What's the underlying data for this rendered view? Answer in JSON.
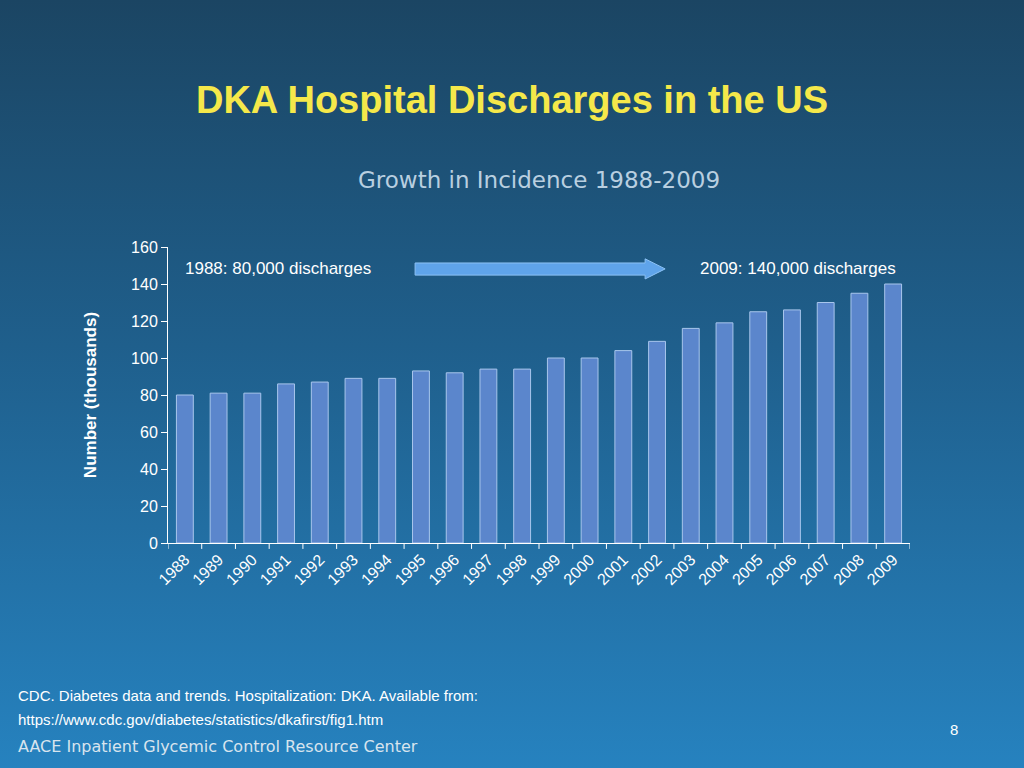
{
  "chart_data": {
    "type": "bar",
    "title": "DKA Hospital Discharges in the US",
    "subtitle": "Growth in Incidence 1988-2009",
    "y_label": "Number (thousands)",
    "categories": [
      "1988",
      "1989",
      "1990",
      "1991",
      "1992",
      "1993",
      "1994",
      "1995",
      "1996",
      "1997",
      "1998",
      "1999",
      "2000",
      "2001",
      "2002",
      "2003",
      "2004",
      "2005",
      "2006",
      "2007",
      "2008",
      "2009"
    ],
    "values": [
      80,
      81,
      81,
      86,
      87,
      89,
      89,
      93,
      92,
      94,
      94,
      100,
      100,
      104,
      109,
      116,
      119,
      125,
      126,
      130,
      135,
      140
    ],
    "color": "#5b86cc",
    "ylim": [
      0,
      160
    ],
    "yticks": [
      0,
      20,
      40,
      60,
      80,
      100,
      120,
      140,
      160
    ],
    "grid": false,
    "annotations": [
      {
        "text": "1988: 80,000 discharges"
      },
      {
        "text": "2009: 140,000 discharges"
      }
    ],
    "source": [
      "CDC. Diabetes data and trends. Hospitalization: DKA. Available from:",
      "https://www.cdc.gov/diabetes/statistics/dkafirst/fig1.htm"
    ],
    "footer": "AACE Inpatient Glycemic Control Resource Center",
    "page": 8
  }
}
